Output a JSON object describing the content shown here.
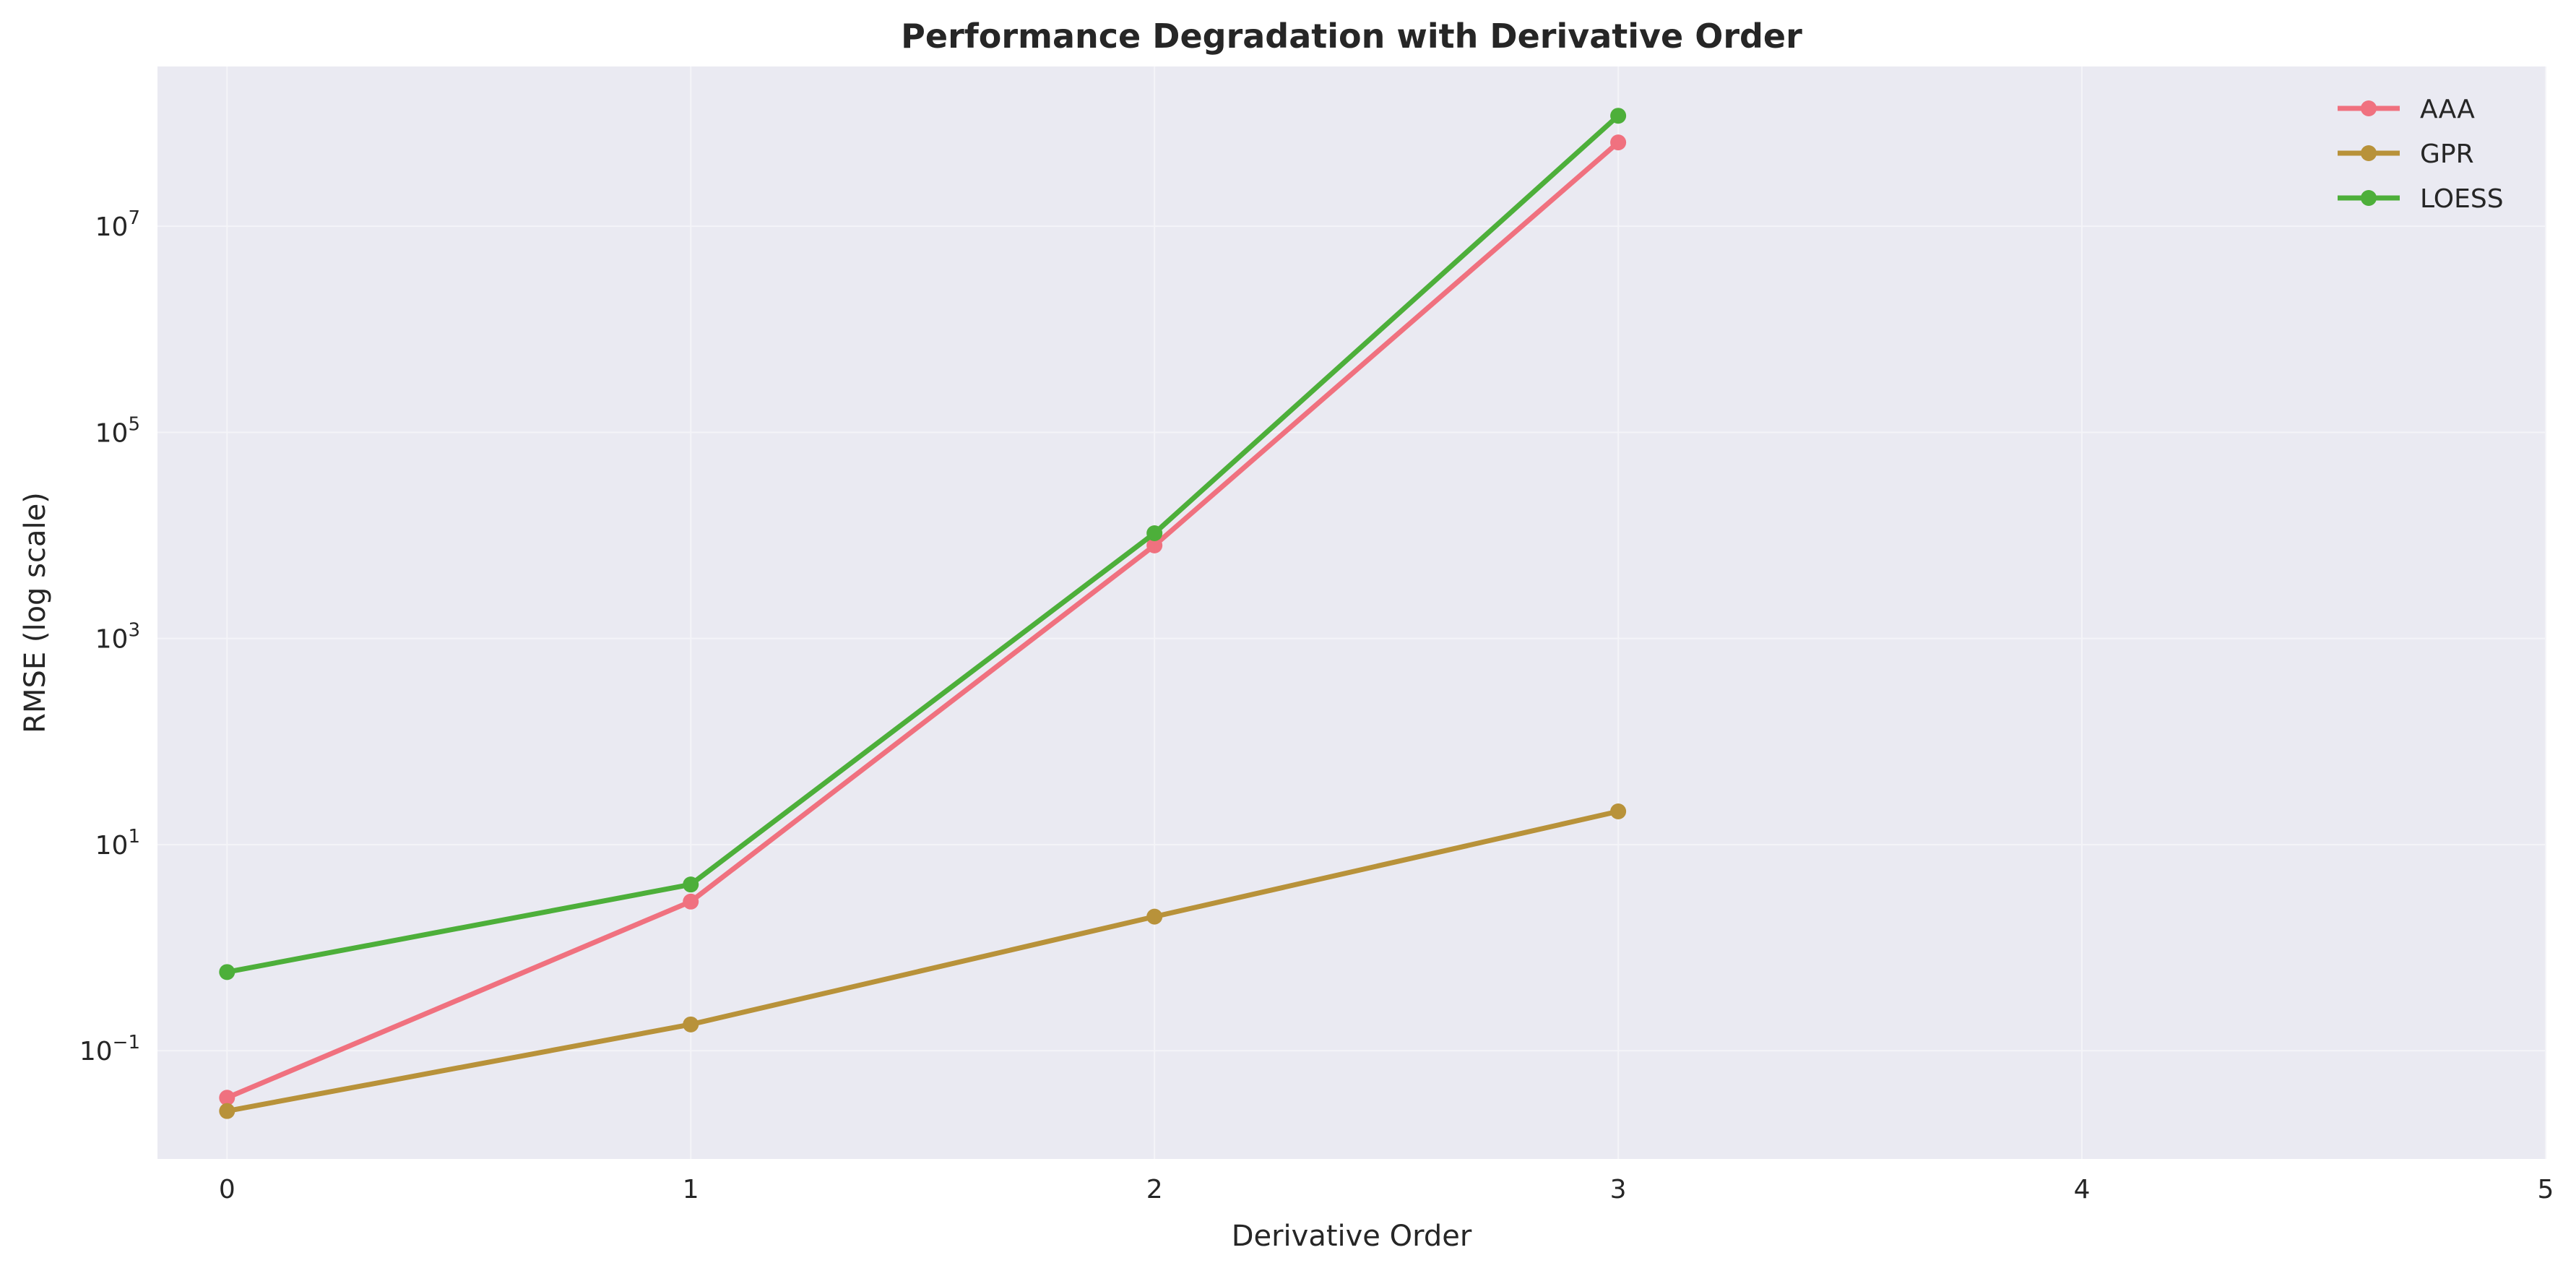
{
  "chart_data": {
    "type": "line",
    "title": "Performance Degradation with Derivative Order",
    "xlabel": "Derivative Order",
    "ylabel": "RMSE (log scale)",
    "xlim": [
      -0.15,
      5
    ],
    "ylim_log10": [
      -2.05,
      8.55
    ],
    "yscale": "log",
    "grid": true,
    "legend_position": "top-right",
    "x": [
      0,
      1,
      2,
      3
    ],
    "x_ticks": [
      0,
      1,
      2,
      3,
      4,
      5
    ],
    "x_tick_labels": [
      "0",
      "1",
      "2",
      "3",
      "4",
      "5"
    ],
    "y_ticks": [
      {
        "value": 0.1,
        "base": "10",
        "exp": "−1"
      },
      {
        "value": 10,
        "base": "10",
        "exp": "1"
      },
      {
        "value": 1000,
        "base": "10",
        "exp": "3"
      },
      {
        "value": 100000,
        "base": "10",
        "exp": "5"
      },
      {
        "value": 10000000,
        "base": "10",
        "exp": "7"
      }
    ],
    "series": [
      {
        "name": "AAA",
        "color": "#f0717f",
        "values": [
          0.035,
          2.8,
          8000,
          65000000
        ]
      },
      {
        "name": "GPR",
        "color": "#b8923a",
        "values": [
          0.026,
          0.18,
          2.0,
          21
        ]
      },
      {
        "name": "LOESS",
        "color": "#4daf3a",
        "values": [
          0.58,
          4.1,
          10500,
          118000000
        ]
      }
    ]
  },
  "colors": {
    "plot_background": "#eaeaf2",
    "grid": "#f4f4f8"
  }
}
